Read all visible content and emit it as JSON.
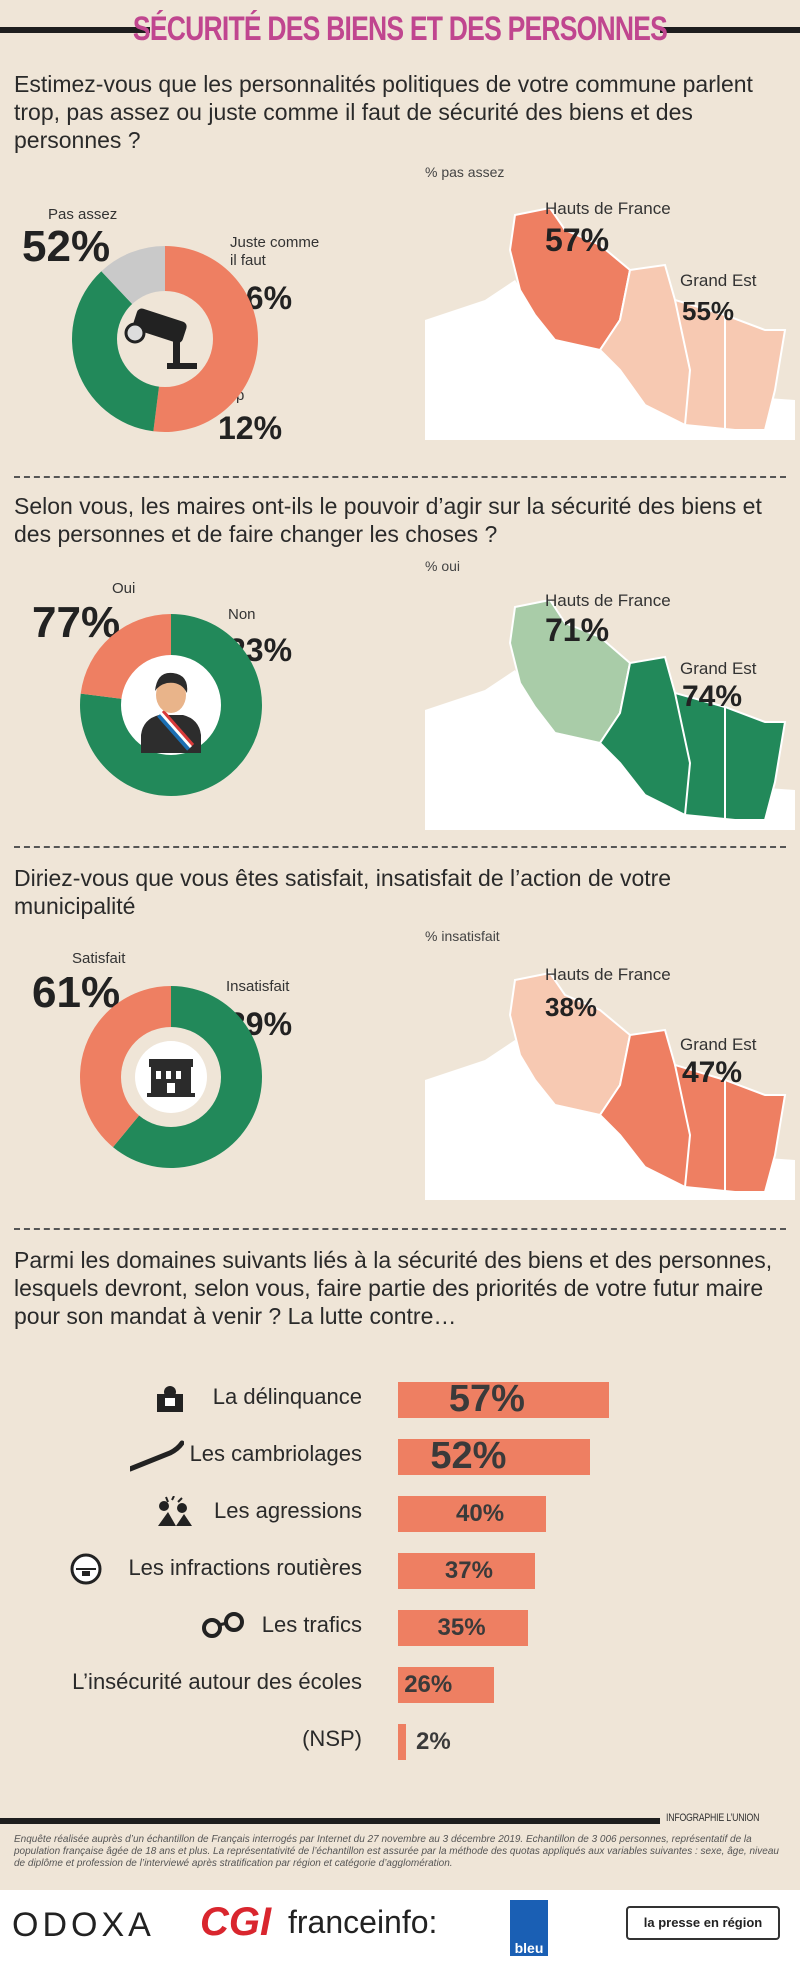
{
  "header": {
    "title": "SÉCURITÉ DES BIENS ET DES PERSONNES"
  },
  "colors": {
    "salmon": "#ee7f62",
    "green": "#22895a",
    "light_green": "#a9cca8",
    "pale_salmon": "#f7c9b2",
    "light_salmon": "#f3a98c",
    "grey": "#c9c9c9",
    "magenta": "#c0468f"
  },
  "q1": {
    "question": "Estimez-vous que les personnalités politiques de votre commune parlent trop, pas assez ou juste comme il faut de sécurité des biens et des personnes ?",
    "map_label": "% pas assez",
    "labels": {
      "pas_assez": "Pas assez",
      "juste": "Juste comme il faut",
      "trop": "Trop"
    },
    "values_text": {
      "pas_assez": "52%",
      "juste": "36%",
      "trop": "12%"
    },
    "regions": {
      "hdf_name": "Hauts de France",
      "hdf_value": "57%",
      "ge_name": "Grand Est",
      "ge_value": "55%"
    },
    "icon": "cctv-camera-icon"
  },
  "q2": {
    "question": "Selon vous, les maires ont-ils le pouvoir d’agir sur la sécurité des biens et des personnes et de faire changer les choses ?",
    "map_label": "% oui",
    "labels": {
      "oui": "Oui",
      "non": "Non"
    },
    "values_text": {
      "oui": "77%",
      "non": "23%"
    },
    "regions": {
      "hdf_name": "Hauts de France",
      "hdf_value": "71%",
      "ge_name": "Grand Est",
      "ge_value": "74%"
    },
    "icon": "mayor-icon"
  },
  "q3": {
    "question": "Diriez-vous que vous êtes satisfait, insatisfait de l’action de votre municipalité",
    "map_label": "% insatisfait",
    "labels": {
      "satisfait": "Satisfait",
      "insatisfait": "Insatisfait"
    },
    "values_text": {
      "satisfait": "61%",
      "insatisfait": "39%"
    },
    "regions": {
      "hdf_name": "Hauts de France",
      "hdf_value": "38%",
      "ge_name": "Grand Est",
      "ge_value": "47%"
    },
    "icon": "town-hall-icon"
  },
  "q4": {
    "question": "Parmi les domaines suivants liés à la sécurité des biens et des personnes, lesquels devront, selon vous, faire partie des priorités de votre futur maire pour son mandat à venir ? La lutte contre…"
  },
  "chart_data": [
    {
      "type": "pie",
      "categories": [
        "Pas assez",
        "Juste comme il faut",
        "Trop"
      ],
      "values": [
        52,
        36,
        12
      ],
      "colors": [
        "#ee7f62",
        "#22895a",
        "#c9c9c9"
      ],
      "regional": {
        "map_label": "% pas assez",
        "categories": [
          "Hauts de France",
          "Grand Est"
        ],
        "values": [
          57,
          55
        ]
      }
    },
    {
      "type": "pie",
      "categories": [
        "Oui",
        "Non"
      ],
      "values": [
        77,
        23
      ],
      "colors": [
        "#22895a",
        "#ee7f62"
      ],
      "regional": {
        "map_label": "% oui",
        "categories": [
          "Hauts de France",
          "Grand Est"
        ],
        "values": [
          71,
          74
        ]
      }
    },
    {
      "type": "pie",
      "categories": [
        "Satisfait",
        "Insatisfait"
      ],
      "values": [
        61,
        39
      ],
      "colors": [
        "#22895a",
        "#ee7f62"
      ],
      "regional": {
        "map_label": "% insatisfait",
        "categories": [
          "Hauts de France",
          "Grand Est"
        ],
        "values": [
          38,
          47
        ]
      }
    },
    {
      "type": "bar",
      "orientation": "horizontal",
      "categories": [
        "La délinquance",
        "Les cambriolages",
        "Les agressions",
        "Les infractions routières",
        "Les trafics",
        "L’insécurité autour des écoles",
        "(NSP)"
      ],
      "values": [
        57,
        52,
        40,
        37,
        35,
        26,
        2
      ],
      "value_labels": [
        "57%",
        "52%",
        "40%",
        "37%",
        "35%",
        "26%",
        "2%"
      ],
      "icons": [
        "police-officer-icon",
        "crowbar-icon",
        "aggression-icon",
        "speed-camera-icon",
        "handcuffs-icon",
        "",
        ""
      ],
      "color": "#ee7f62"
    }
  ],
  "footer": {
    "credit": "INFOGRAPHIE L’UNION",
    "note": "Enquête réalisée auprès d’un échantillon de Français interrogés par Internet du 27 novembre au 3 décembre 2019. Echantillon de 3 006 personnes, représentatif de la population française âgée de 18 ans et plus. La représentativité de l’échantillon est assurée par la méthode des quotas appliqués aux variables suivantes : sexe, âge, niveau de diplôme et profession de l’interviewé après stratification par région et catégorie d’agglomération.",
    "logos": [
      "ODOXA",
      "CGI",
      "franceinfo:",
      "bleu",
      "la presse en région"
    ]
  }
}
